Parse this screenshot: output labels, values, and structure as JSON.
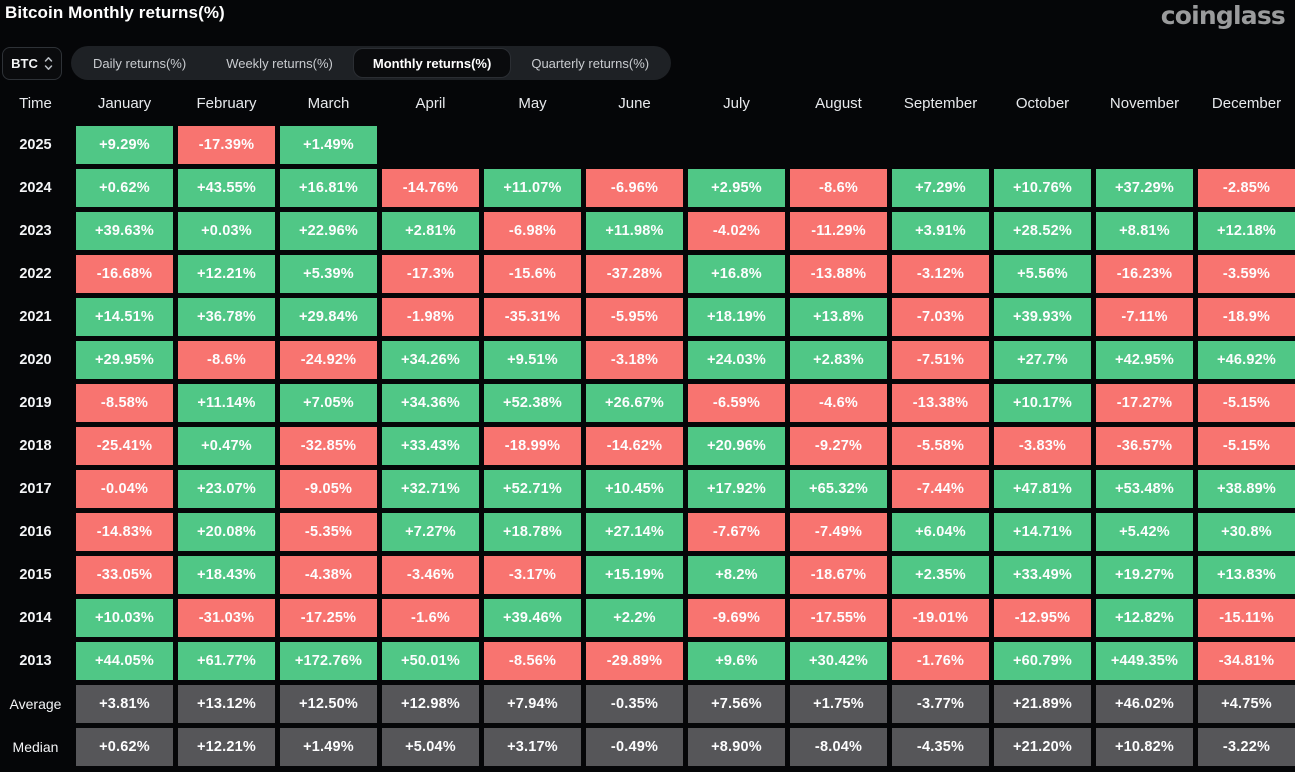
{
  "page": {
    "title": "Bitcoin Monthly returns(%)",
    "brand": "coinglass"
  },
  "controls": {
    "symbol_select": {
      "value": "BTC"
    },
    "tabs": [
      {
        "label": "Daily returns(%)",
        "active": false
      },
      {
        "label": "Weekly returns(%)",
        "active": false
      },
      {
        "label": "Monthly returns(%)",
        "active": true
      },
      {
        "label": "Quarterly returns(%)",
        "active": false
      }
    ]
  },
  "colors": {
    "positive": "#50c786",
    "negative": "#f87470",
    "summary": "#565659"
  },
  "table": {
    "columns": [
      "Time",
      "January",
      "February",
      "March",
      "April",
      "May",
      "June",
      "July",
      "August",
      "September",
      "October",
      "November",
      "December"
    ],
    "rows": [
      {
        "label": "2025",
        "type": "year",
        "values": [
          "+9.29%",
          "-17.39%",
          "+1.49%",
          "",
          "",
          "",
          "",
          "",
          "",
          "",
          "",
          ""
        ]
      },
      {
        "label": "2024",
        "type": "year",
        "values": [
          "+0.62%",
          "+43.55%",
          "+16.81%",
          "-14.76%",
          "+11.07%",
          "-6.96%",
          "+2.95%",
          "-8.6%",
          "+7.29%",
          "+10.76%",
          "+37.29%",
          "-2.85%"
        ]
      },
      {
        "label": "2023",
        "type": "year",
        "values": [
          "+39.63%",
          "+0.03%",
          "+22.96%",
          "+2.81%",
          "-6.98%",
          "+11.98%",
          "-4.02%",
          "-11.29%",
          "+3.91%",
          "+28.52%",
          "+8.81%",
          "+12.18%"
        ]
      },
      {
        "label": "2022",
        "type": "year",
        "values": [
          "-16.68%",
          "+12.21%",
          "+5.39%",
          "-17.3%",
          "-15.6%",
          "-37.28%",
          "+16.8%",
          "-13.88%",
          "-3.12%",
          "+5.56%",
          "-16.23%",
          "-3.59%"
        ]
      },
      {
        "label": "2021",
        "type": "year",
        "values": [
          "+14.51%",
          "+36.78%",
          "+29.84%",
          "-1.98%",
          "-35.31%",
          "-5.95%",
          "+18.19%",
          "+13.8%",
          "-7.03%",
          "+39.93%",
          "-7.11%",
          "-18.9%"
        ]
      },
      {
        "label": "2020",
        "type": "year",
        "values": [
          "+29.95%",
          "-8.6%",
          "-24.92%",
          "+34.26%",
          "+9.51%",
          "-3.18%",
          "+24.03%",
          "+2.83%",
          "-7.51%",
          "+27.7%",
          "+42.95%",
          "+46.92%"
        ]
      },
      {
        "label": "2019",
        "type": "year",
        "values": [
          "-8.58%",
          "+11.14%",
          "+7.05%",
          "+34.36%",
          "+52.38%",
          "+26.67%",
          "-6.59%",
          "-4.6%",
          "-13.38%",
          "+10.17%",
          "-17.27%",
          "-5.15%"
        ]
      },
      {
        "label": "2018",
        "type": "year",
        "values": [
          "-25.41%",
          "+0.47%",
          "-32.85%",
          "+33.43%",
          "-18.99%",
          "-14.62%",
          "+20.96%",
          "-9.27%",
          "-5.58%",
          "-3.83%",
          "-36.57%",
          "-5.15%"
        ]
      },
      {
        "label": "2017",
        "type": "year",
        "values": [
          "-0.04%",
          "+23.07%",
          "-9.05%",
          "+32.71%",
          "+52.71%",
          "+10.45%",
          "+17.92%",
          "+65.32%",
          "-7.44%",
          "+47.81%",
          "+53.48%",
          "+38.89%"
        ]
      },
      {
        "label": "2016",
        "type": "year",
        "values": [
          "-14.83%",
          "+20.08%",
          "-5.35%",
          "+7.27%",
          "+18.78%",
          "+27.14%",
          "-7.67%",
          "-7.49%",
          "+6.04%",
          "+14.71%",
          "+5.42%",
          "+30.8%"
        ]
      },
      {
        "label": "2015",
        "type": "year",
        "values": [
          "-33.05%",
          "+18.43%",
          "-4.38%",
          "-3.46%",
          "-3.17%",
          "+15.19%",
          "+8.2%",
          "-18.67%",
          "+2.35%",
          "+33.49%",
          "+19.27%",
          "+13.83%"
        ]
      },
      {
        "label": "2014",
        "type": "year",
        "values": [
          "+10.03%",
          "-31.03%",
          "-17.25%",
          "-1.6%",
          "+39.46%",
          "+2.2%",
          "-9.69%",
          "-17.55%",
          "-19.01%",
          "-12.95%",
          "+12.82%",
          "-15.11%"
        ]
      },
      {
        "label": "2013",
        "type": "year",
        "values": [
          "+44.05%",
          "+61.77%",
          "+172.76%",
          "+50.01%",
          "-8.56%",
          "-29.89%",
          "+9.6%",
          "+30.42%",
          "-1.76%",
          "+60.79%",
          "+449.35%",
          "-34.81%"
        ]
      },
      {
        "label": "Average",
        "type": "summary",
        "values": [
          "+3.81%",
          "+13.12%",
          "+12.50%",
          "+12.98%",
          "+7.94%",
          "-0.35%",
          "+7.56%",
          "+1.75%",
          "-3.77%",
          "+21.89%",
          "+46.02%",
          "+4.75%"
        ]
      },
      {
        "label": "Median",
        "type": "summary",
        "values": [
          "+0.62%",
          "+12.21%",
          "+1.49%",
          "+5.04%",
          "+3.17%",
          "-0.49%",
          "+8.90%",
          "-8.04%",
          "-4.35%",
          "+21.20%",
          "+10.82%",
          "-3.22%"
        ]
      }
    ]
  }
}
